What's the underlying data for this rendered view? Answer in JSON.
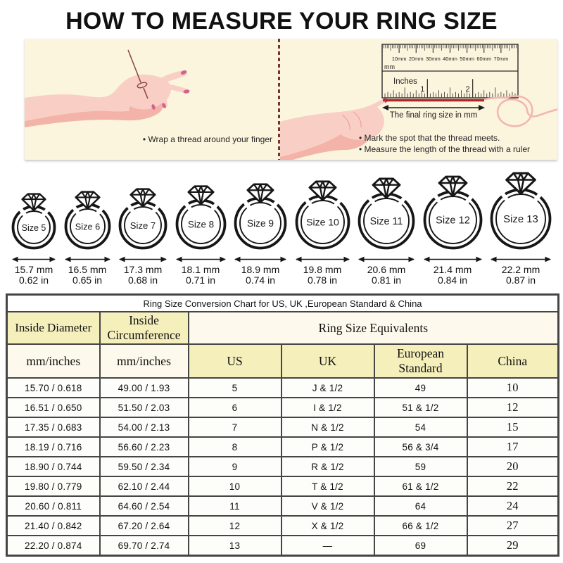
{
  "title": "HOW TO MEASURE YOUR RING SIZE",
  "instructions": {
    "left_bullet": "Wrap a thread around your finger",
    "right_bullets": [
      "Mark the spot that the thread meets.",
      "Measure the length of the thread with a ruler"
    ],
    "ruler": {
      "mm_labels": [
        "10mm",
        "20mm",
        "30mm",
        "40mm",
        "50mm",
        "60mm",
        "70mm"
      ],
      "mm_unit": "mm",
      "inches_label": "Inches",
      "inch_numbers": [
        "1",
        "2"
      ],
      "arrow_label": "The final ring size in mm"
    }
  },
  "rings": [
    {
      "size_label": "Size 5",
      "diameter_mm": "15.7 mm",
      "diameter_in": "0.62 in"
    },
    {
      "size_label": "Size 6",
      "diameter_mm": "16.5 mm",
      "diameter_in": "0.65 in"
    },
    {
      "size_label": "Size 7",
      "diameter_mm": "17.3 mm",
      "diameter_in": "0.68 in"
    },
    {
      "size_label": "Size 8",
      "diameter_mm": "18.1 mm",
      "diameter_in": "0.71 in"
    },
    {
      "size_label": "Size 9",
      "diameter_mm": "18.9 mm",
      "diameter_in": "0.74 in"
    },
    {
      "size_label": "Size 10",
      "diameter_mm": "19.8 mm",
      "diameter_in": "0.78 in"
    },
    {
      "size_label": "Size 11",
      "diameter_mm": "20.6 mm",
      "diameter_in": "0.81 in"
    },
    {
      "size_label": "Size 12",
      "diameter_mm": "21.4 mm",
      "diameter_in": "0.84 in"
    },
    {
      "size_label": "Size 13",
      "diameter_mm": "22.2 mm",
      "diameter_in": "0.87 in"
    }
  ],
  "table": {
    "title": "Ring Size Conversion Chart for US, UK ,European Standard & China",
    "group_headers": {
      "inside_diameter": "Inside Diameter",
      "inside_circumference": "Inside Circumference",
      "ring_size_equivalents": "Ring Size Equivalents"
    },
    "sub_headers": {
      "diameter_unit": "mm/inches",
      "circumference_unit": "mm/inches",
      "us": "US",
      "uk": "UK",
      "european": "European Standard",
      "china": "China"
    },
    "rows": [
      [
        "15.70 / 0.618",
        "49.00 / 1.93",
        "5",
        "J & 1/2",
        "49",
        "10"
      ],
      [
        "16.51 / 0.650",
        "51.50 / 2.03",
        "6",
        "I & 1/2",
        "51 & 1/2",
        "12"
      ],
      [
        "17.35 / 0.683",
        "54.00 / 2.13",
        "7",
        "N & 1/2",
        "54",
        "15"
      ],
      [
        "18.19 / 0.716",
        "56.60 / 2.23",
        "8",
        "P & 1/2",
        "56 & 3/4",
        "17"
      ],
      [
        "18.90 / 0.744",
        "59.50 / 2.34",
        "9",
        "R & 1/2",
        "59",
        "20"
      ],
      [
        "19.80 / 0.779",
        "62.10 / 2.44",
        "10",
        "T & 1/2",
        "61 & 1/2",
        "22"
      ],
      [
        "20.60 / 0.811",
        "64.60 / 2.54",
        "11",
        "V & 1/2",
        "64",
        "24"
      ],
      [
        "21.40 / 0.842",
        "67.20 / 2.64",
        "12",
        "X & 1/2",
        "66 & 1/2",
        "27"
      ],
      [
        "22.20 / 0.874",
        "69.70 / 2.74",
        "13",
        "—",
        "69",
        "29"
      ]
    ]
  },
  "colors": {
    "accent_red": "#b3262c",
    "divider_red": "#7a342c",
    "panel_bg": "#fcf5de",
    "cell_yellow": "#f5efbc",
    "cell_cream": "#fdf9ec",
    "table_border": "#454545",
    "skin": "#f9cfc5",
    "skin_shadow": "#f3b3a8",
    "nail_pink": "#d6628c",
    "thread_dark": "#8d4a43",
    "thread_pink": "#f2b7b0",
    "ink": "#1c1c1c"
  }
}
